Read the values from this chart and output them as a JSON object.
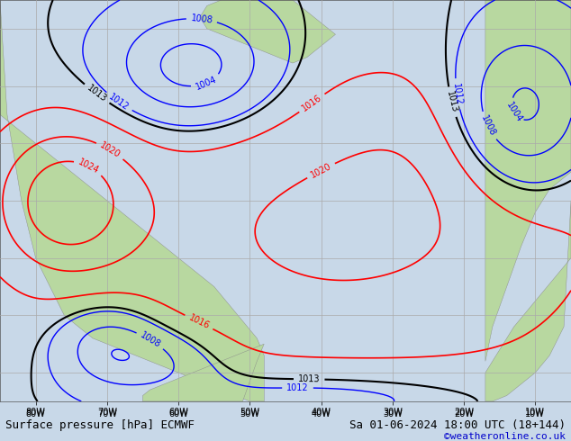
{
  "title_bottom_left": "Surface pressure [hPa] ECMWF",
  "title_bottom_right": "Sa 01-06-2024 18:00 UTC (18+144)",
  "copyright": "©weatheronline.co.uk",
  "ocean_color": "#c8d8e8",
  "land_color": "#b8d8a0",
  "land_edge_color": "#888888",
  "grid_color": "#aaaaaa",
  "contour_color_red": "#ff0000",
  "contour_color_black": "#000000",
  "contour_color_blue": "#0000ff",
  "text_color_bottom": "#000000",
  "copyright_color": "#0000cc",
  "bottom_bar_color": "#e0e0e0",
  "lon_min": -85,
  "lon_max": -5,
  "lat_min": -5,
  "lat_max": 65,
  "lon_ticks": [
    -80,
    -70,
    -60,
    -50,
    -40,
    -30,
    -20,
    -10
  ],
  "grid_lons": [
    -80,
    -70,
    -60,
    -50,
    -40,
    -30,
    -20,
    -10
  ],
  "grid_lats": [
    0,
    10,
    20,
    30,
    40,
    50,
    60
  ],
  "font_size_bottom": 9,
  "font_size_copyright": 8
}
